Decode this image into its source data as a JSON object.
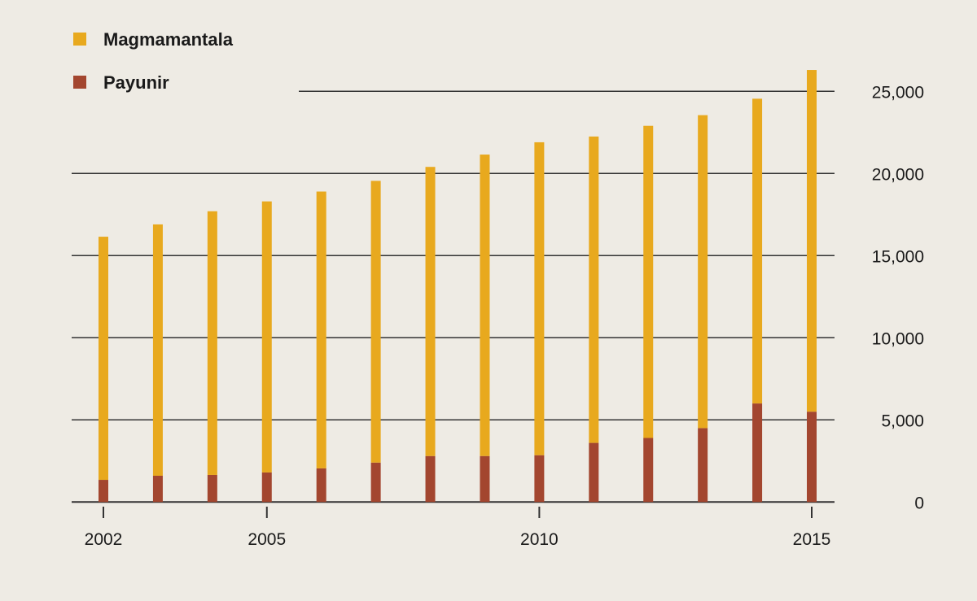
{
  "chart_data": {
    "type": "bar",
    "stacked": true,
    "title": "",
    "xlabel": "",
    "ylabel": "",
    "categories": [
      "2002",
      "2003",
      "2004",
      "2005",
      "2006",
      "2007",
      "2008",
      "2009",
      "2010",
      "2011",
      "2012",
      "2013",
      "2014",
      "2015"
    ],
    "x_tick_labels": [
      "2002",
      "2005",
      "2010",
      "2015"
    ],
    "y_tick_labels": [
      "0",
      "5,000",
      "10,000",
      "15,000",
      "20,000",
      "25,000"
    ],
    "y_ticks": [
      0,
      5000,
      10000,
      15000,
      20000,
      25000
    ],
    "ylim": [
      0,
      27000
    ],
    "y_axis_position": "right",
    "grid": true,
    "legend_position": "top-left",
    "series": [
      {
        "name": "Payunir",
        "color": "#a3462f",
        "values": [
          1350,
          1600,
          1650,
          1800,
          2050,
          2400,
          2800,
          2800,
          2850,
          3600,
          3900,
          4500,
          6000,
          5500
        ]
      },
      {
        "name": "Magmamantala",
        "color": "#e8a91e",
        "values": [
          14800,
          15300,
          16050,
          16500,
          16850,
          17150,
          17600,
          18350,
          19050,
          18650,
          19000,
          19050,
          18550,
          20800
        ]
      }
    ],
    "legend_order": [
      "Magmamantala",
      "Payunir"
    ]
  }
}
